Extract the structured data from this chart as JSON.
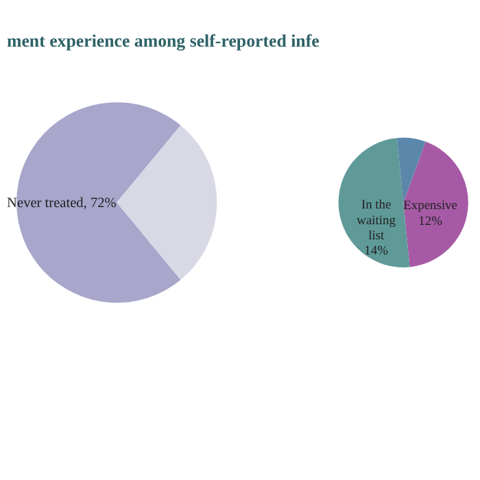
{
  "chart_data": [
    {
      "type": "pie",
      "title": "ment experience among self-reported infe",
      "categories": [
        "Never treated",
        null
      ],
      "values": [
        72,
        28
      ],
      "colors": [
        "#a9a6cc",
        "#d9d9e6"
      ],
      "value_labels": [
        "72%",
        null
      ]
    },
    {
      "type": "pie",
      "categories": [
        "Expensive",
        "In the waiting list",
        null
      ],
      "values": [
        12,
        14,
        2
      ],
      "colors": [
        "#a65aa5",
        "#5f9a98",
        "#5b87aa"
      ],
      "value_labels": [
        "12%",
        "14%",
        null
      ]
    }
  ]
}
